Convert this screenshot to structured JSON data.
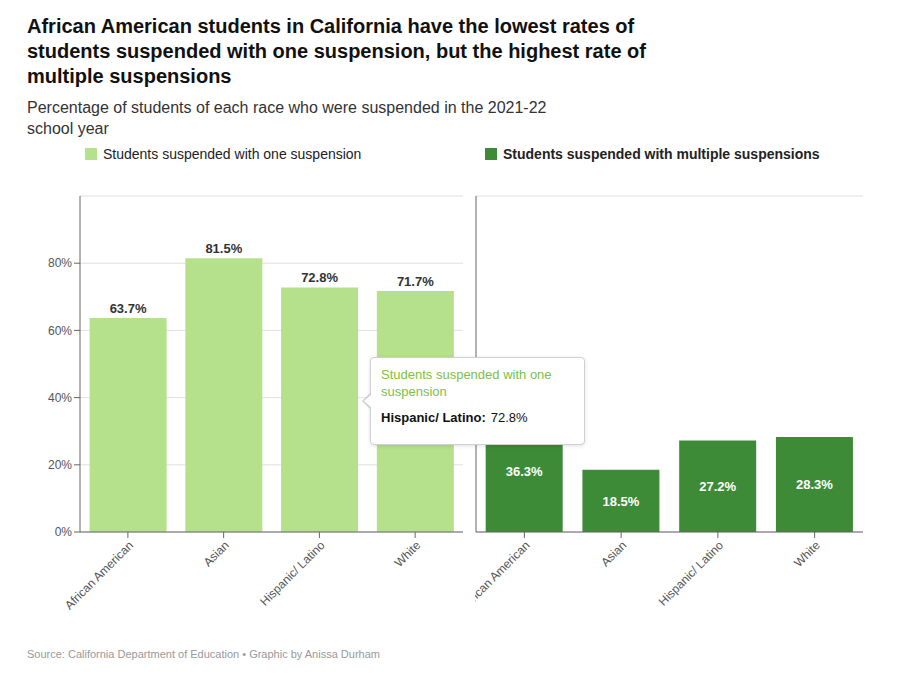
{
  "chart_data": {
    "type": "bar",
    "title": "African American students in California have the lowest rates of\nstudents suspended with one suspension, but the highest rate of\nmultiple suspensions",
    "subtitle": "Percentage of students of each race who were suspended in the 2021-22\nschool year",
    "categories": [
      "African American",
      "Asian",
      "Hispanic/ Latino",
      "White"
    ],
    "series": [
      {
        "name": "Students suspended with one suspension",
        "color": "#b5e08c",
        "values": [
          63.7,
          81.5,
          72.8,
          71.7
        ],
        "value_labels": [
          "63.7%",
          "81.5%",
          "72.8%",
          "71.7%"
        ]
      },
      {
        "name": "Students suspended with multiple suspensions",
        "color": "#3d8b37",
        "values": [
          36.3,
          18.5,
          27.2,
          28.3
        ],
        "value_labels": [
          "36.3%",
          "18.5%",
          "27.2%",
          "28.3%"
        ]
      }
    ],
    "ylim": [
      0,
      100
    ],
    "yticks": [
      {
        "value": 0,
        "label": "0%"
      },
      {
        "value": 20,
        "label": "20%"
      },
      {
        "value": 40,
        "label": "40%"
      },
      {
        "value": 60,
        "label": "60%"
      },
      {
        "value": 80,
        "label": "80%"
      }
    ],
    "grid": true,
    "data_labels": true,
    "annotations": [
      {
        "text": "Students suspended with one\nsuspension",
        "color": "#7dc142"
      },
      {
        "text": "Hispanic/ Latino:"
      },
      {
        "text": "72.8%"
      },
      {
        "text": "Source: California Department of Education • Graphic by Anissa Durham"
      }
    ]
  }
}
